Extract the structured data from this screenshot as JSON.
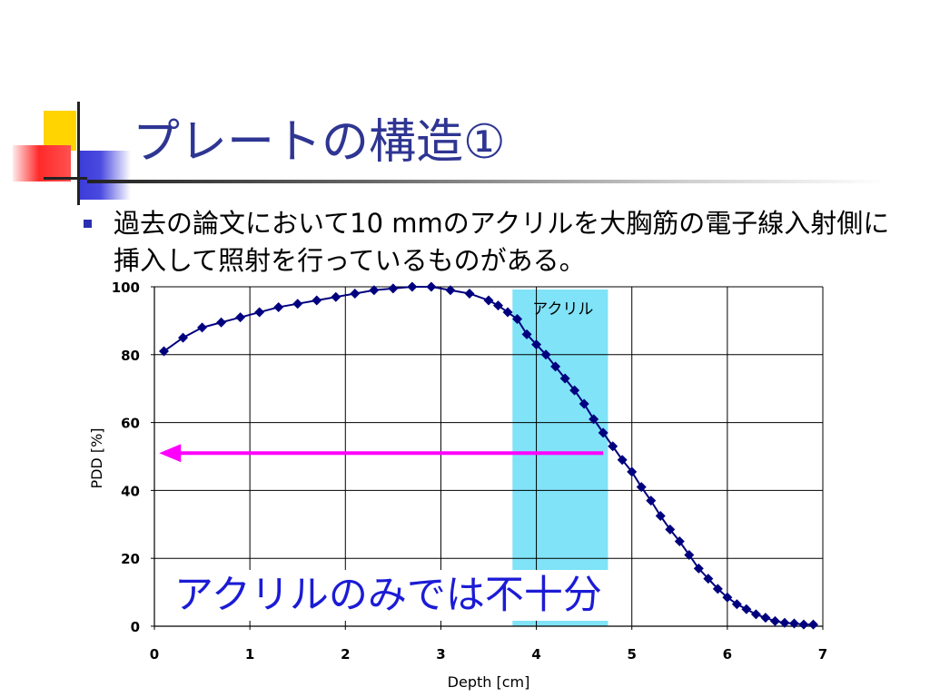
{
  "slide": {
    "title": "プレートの構造①",
    "bullet_text": "過去の論文において10 mmのアクリルを大胸筋の電子線入射側に挿入して照射を行っているものがある。",
    "callout_text": "アクリルのみでは不十分"
  },
  "colors": {
    "title": "#2e3592",
    "series": "#00007f",
    "arrow": "#ff00ff",
    "acrylic_band": "#80e3f8",
    "callout": "#1b1bd6"
  },
  "chart_data": {
    "type": "line",
    "xlabel": "Depth [cm]",
    "ylabel": "PDD [%]",
    "xlim": [
      0,
      7
    ],
    "ylim": [
      0,
      100
    ],
    "xticks": [
      0,
      1,
      2,
      3,
      4,
      5,
      6,
      7
    ],
    "yticks": [
      0,
      20,
      40,
      60,
      80,
      100
    ],
    "grid": true,
    "band": {
      "label": "アクリル",
      "x_range": [
        3.75,
        4.75
      ]
    },
    "arrow": {
      "from": [
        4.7,
        51
      ],
      "to": [
        0.05,
        51
      ],
      "direction": "left"
    },
    "series": [
      {
        "x": [
          0.1,
          0.3,
          0.5,
          0.7,
          0.9,
          1.1,
          1.3,
          1.5,
          1.7,
          1.9,
          2.1,
          2.3,
          2.5,
          2.7,
          2.9,
          3.1,
          3.3,
          3.5,
          3.6,
          3.7,
          3.8,
          3.9,
          4.0,
          4.1,
          4.2,
          4.3,
          4.4,
          4.5,
          4.6,
          4.7,
          4.8,
          4.9,
          5.0,
          5.1,
          5.2,
          5.3,
          5.4,
          5.5,
          5.6,
          5.7,
          5.8,
          5.9,
          6.0,
          6.1,
          6.2,
          6.3,
          6.4,
          6.5,
          6.6,
          6.7,
          6.8,
          6.9
        ],
        "y": [
          81,
          85,
          88,
          89.5,
          91,
          92.5,
          94,
          95,
          96,
          97,
          98,
          99,
          99.5,
          100,
          100,
          99,
          98,
          96,
          94.5,
          92.5,
          90.5,
          86,
          83,
          80,
          76.5,
          73,
          69.5,
          65.5,
          61,
          57,
          53,
          49,
          45.5,
          41,
          37,
          32.5,
          28.5,
          25,
          21,
          17,
          14,
          11,
          8.5,
          6.5,
          5,
          3.5,
          2.5,
          1.5,
          1,
          0.8,
          0.5,
          0.5
        ]
      }
    ]
  }
}
